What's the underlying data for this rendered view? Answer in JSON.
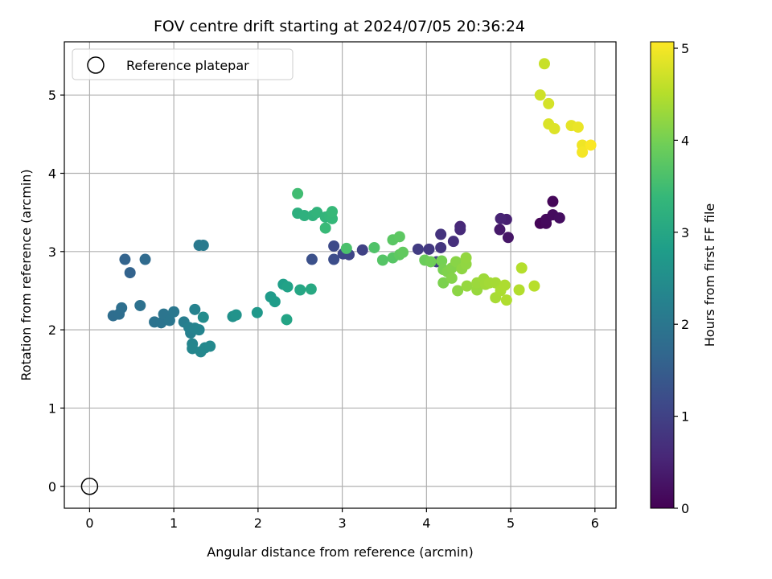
{
  "chart_data": {
    "type": "scatter",
    "title": "FOV centre drift starting at 2024/07/05 20:36:24",
    "xlabel": "Angular distance from reference (arcmin)",
    "ylabel": "Rotation from reference (arcmin)",
    "xlim": [
      -0.3,
      6.25
    ],
    "ylim": [
      -0.28,
      5.68
    ],
    "xticks": [
      0,
      1,
      2,
      3,
      4,
      5,
      6
    ],
    "yticks": [
      0,
      1,
      2,
      3,
      4,
      5
    ],
    "grid": true,
    "legend": {
      "placement": "top-left",
      "entries": [
        "Reference platepar"
      ]
    },
    "reference_point": {
      "label": "Reference platepar",
      "x": 0,
      "y": 0
    },
    "colorbar": {
      "label": "Hours from first FF file",
      "min": 0,
      "max": 5.07,
      "ticks": [
        0,
        1,
        2,
        3,
        4,
        5
      ],
      "colormap": "viridis"
    },
    "colormap_stops": [
      "#440154",
      "#482878",
      "#3e4989",
      "#31688e",
      "#26828e",
      "#1f9e89",
      "#35b779",
      "#6ece58",
      "#b5de2b",
      "#fde725"
    ],
    "points": [
      {
        "x": 5.35,
        "y": 3.36,
        "c": 0.05
      },
      {
        "x": 5.42,
        "y": 3.36,
        "c": 0.1
      },
      {
        "x": 5.42,
        "y": 3.41,
        "c": 0.12
      },
      {
        "x": 5.5,
        "y": 3.47,
        "c": 0.15
      },
      {
        "x": 5.58,
        "y": 3.43,
        "c": 0.18
      },
      {
        "x": 5.5,
        "y": 3.64,
        "c": 0.08
      },
      {
        "x": 4.97,
        "y": 3.18,
        "c": 0.3
      },
      {
        "x": 4.87,
        "y": 3.28,
        "c": 0.35
      },
      {
        "x": 4.95,
        "y": 3.41,
        "c": 0.45
      },
      {
        "x": 4.88,
        "y": 3.42,
        "c": 0.5
      },
      {
        "x": 4.4,
        "y": 3.32,
        "c": 0.55
      },
      {
        "x": 4.4,
        "y": 3.28,
        "c": 0.6
      },
      {
        "x": 4.32,
        "y": 3.13,
        "c": 0.7
      },
      {
        "x": 4.17,
        "y": 3.22,
        "c": 0.75
      },
      {
        "x": 4.17,
        "y": 3.05,
        "c": 0.8
      },
      {
        "x": 4.03,
        "y": 3.03,
        "c": 0.85
      },
      {
        "x": 3.9,
        "y": 3.03,
        "c": 0.9
      },
      {
        "x": 4.12,
        "y": 2.87,
        "c": 0.95
      },
      {
        "x": 3.24,
        "y": 3.02,
        "c": 1.0
      },
      {
        "x": 3.08,
        "y": 2.96,
        "c": 1.05
      },
      {
        "x": 3.01,
        "y": 2.97,
        "c": 1.1
      },
      {
        "x": 2.9,
        "y": 3.07,
        "c": 1.15
      },
      {
        "x": 2.9,
        "y": 2.9,
        "c": 1.2
      },
      {
        "x": 2.64,
        "y": 2.9,
        "c": 1.25
      },
      {
        "x": 0.48,
        "y": 2.73,
        "c": 1.6
      },
      {
        "x": 0.42,
        "y": 2.9,
        "c": 1.62
      },
      {
        "x": 0.66,
        "y": 2.9,
        "c": 1.75
      },
      {
        "x": 0.28,
        "y": 2.18,
        "c": 1.8
      },
      {
        "x": 0.35,
        "y": 2.2,
        "c": 1.82
      },
      {
        "x": 0.38,
        "y": 2.28,
        "c": 1.84
      },
      {
        "x": 0.6,
        "y": 2.31,
        "c": 1.88
      },
      {
        "x": 0.77,
        "y": 2.1,
        "c": 1.92
      },
      {
        "x": 0.85,
        "y": 2.09,
        "c": 1.95
      },
      {
        "x": 0.88,
        "y": 2.2,
        "c": 1.97
      },
      {
        "x": 0.95,
        "y": 2.12,
        "c": 2.0
      },
      {
        "x": 1.0,
        "y": 2.23,
        "c": 2.02
      },
      {
        "x": 1.3,
        "y": 3.08,
        "c": 2.05
      },
      {
        "x": 1.35,
        "y": 3.08,
        "c": 2.07
      },
      {
        "x": 1.12,
        "y": 2.1,
        "c": 2.15
      },
      {
        "x": 1.18,
        "y": 2.03,
        "c": 2.2
      },
      {
        "x": 1.2,
        "y": 1.96,
        "c": 2.22
      },
      {
        "x": 1.25,
        "y": 2.26,
        "c": 2.25
      },
      {
        "x": 1.25,
        "y": 2.02,
        "c": 2.27
      },
      {
        "x": 1.3,
        "y": 2.0,
        "c": 2.3
      },
      {
        "x": 1.22,
        "y": 1.82,
        "c": 2.32
      },
      {
        "x": 1.22,
        "y": 1.76,
        "c": 2.34
      },
      {
        "x": 1.32,
        "y": 1.72,
        "c": 2.36
      },
      {
        "x": 1.37,
        "y": 1.77,
        "c": 2.38
      },
      {
        "x": 1.43,
        "y": 1.79,
        "c": 2.4
      },
      {
        "x": 1.35,
        "y": 2.16,
        "c": 2.45
      },
      {
        "x": 1.7,
        "y": 2.17,
        "c": 2.55
      },
      {
        "x": 1.74,
        "y": 2.19,
        "c": 2.6
      },
      {
        "x": 1.99,
        "y": 2.22,
        "c": 2.7
      },
      {
        "x": 2.15,
        "y": 2.42,
        "c": 2.75
      },
      {
        "x": 2.2,
        "y": 2.36,
        "c": 2.78
      },
      {
        "x": 2.3,
        "y": 2.58,
        "c": 2.85
      },
      {
        "x": 2.35,
        "y": 2.55,
        "c": 2.9
      },
      {
        "x": 2.34,
        "y": 2.13,
        "c": 2.95
      },
      {
        "x": 2.5,
        "y": 2.51,
        "c": 3.0
      },
      {
        "x": 2.63,
        "y": 2.52,
        "c": 3.05
      },
      {
        "x": 2.47,
        "y": 3.49,
        "c": 3.2
      },
      {
        "x": 2.55,
        "y": 3.46,
        "c": 3.22
      },
      {
        "x": 2.65,
        "y": 3.46,
        "c": 3.25
      },
      {
        "x": 2.7,
        "y": 3.5,
        "c": 3.3
      },
      {
        "x": 2.8,
        "y": 3.44,
        "c": 3.32
      },
      {
        "x": 2.85,
        "y": 3.46,
        "c": 3.35
      },
      {
        "x": 2.88,
        "y": 3.42,
        "c": 3.38
      },
      {
        "x": 2.88,
        "y": 3.51,
        "c": 3.4
      },
      {
        "x": 2.8,
        "y": 3.3,
        "c": 3.42
      },
      {
        "x": 2.47,
        "y": 3.74,
        "c": 3.5
      },
      {
        "x": 3.05,
        "y": 3.04,
        "c": 3.6
      },
      {
        "x": 3.38,
        "y": 3.05,
        "c": 3.65
      },
      {
        "x": 3.48,
        "y": 2.89,
        "c": 3.7
      },
      {
        "x": 3.6,
        "y": 2.92,
        "c": 3.72
      },
      {
        "x": 3.6,
        "y": 3.15,
        "c": 3.75
      },
      {
        "x": 3.68,
        "y": 3.19,
        "c": 3.78
      },
      {
        "x": 3.68,
        "y": 2.96,
        "c": 3.8
      },
      {
        "x": 3.72,
        "y": 2.99,
        "c": 3.82
      },
      {
        "x": 3.98,
        "y": 2.89,
        "c": 3.9
      },
      {
        "x": 4.05,
        "y": 2.87,
        "c": 3.95
      },
      {
        "x": 4.18,
        "y": 2.88,
        "c": 4.0
      },
      {
        "x": 4.2,
        "y": 2.77,
        "c": 4.02
      },
      {
        "x": 4.2,
        "y": 2.6,
        "c": 4.05
      },
      {
        "x": 4.25,
        "y": 2.74,
        "c": 4.08
      },
      {
        "x": 4.3,
        "y": 2.79,
        "c": 4.1
      },
      {
        "x": 4.3,
        "y": 2.66,
        "c": 4.12
      },
      {
        "x": 4.35,
        "y": 2.87,
        "c": 4.15
      },
      {
        "x": 4.37,
        "y": 2.5,
        "c": 4.18
      },
      {
        "x": 4.42,
        "y": 2.78,
        "c": 4.2
      },
      {
        "x": 4.47,
        "y": 2.84,
        "c": 4.22
      },
      {
        "x": 4.47,
        "y": 2.92,
        "c": 4.24
      },
      {
        "x": 4.48,
        "y": 2.56,
        "c": 4.26
      },
      {
        "x": 4.6,
        "y": 2.51,
        "c": 4.28
      },
      {
        "x": 4.6,
        "y": 2.6,
        "c": 4.3
      },
      {
        "x": 4.68,
        "y": 2.65,
        "c": 4.32
      },
      {
        "x": 4.7,
        "y": 2.58,
        "c": 4.34
      },
      {
        "x": 4.75,
        "y": 2.6,
        "c": 4.36
      },
      {
        "x": 4.82,
        "y": 2.6,
        "c": 4.38
      },
      {
        "x": 4.82,
        "y": 2.41,
        "c": 4.4
      },
      {
        "x": 4.88,
        "y": 2.5,
        "c": 4.42
      },
      {
        "x": 4.93,
        "y": 2.57,
        "c": 4.44
      },
      {
        "x": 4.95,
        "y": 2.38,
        "c": 4.46
      },
      {
        "x": 5.1,
        "y": 2.51,
        "c": 4.48
      },
      {
        "x": 5.13,
        "y": 2.79,
        "c": 4.5
      },
      {
        "x": 5.28,
        "y": 2.56,
        "c": 4.52
      },
      {
        "x": 5.4,
        "y": 5.4,
        "c": 4.65
      },
      {
        "x": 5.35,
        "y": 5.0,
        "c": 4.7
      },
      {
        "x": 5.45,
        "y": 4.89,
        "c": 4.75
      },
      {
        "x": 5.45,
        "y": 4.63,
        "c": 4.8
      },
      {
        "x": 5.52,
        "y": 4.57,
        "c": 4.82
      },
      {
        "x": 5.72,
        "y": 4.61,
        "c": 4.88
      },
      {
        "x": 5.8,
        "y": 4.59,
        "c": 4.92
      },
      {
        "x": 5.85,
        "y": 4.36,
        "c": 4.96
      },
      {
        "x": 5.85,
        "y": 4.27,
        "c": 5.0
      },
      {
        "x": 5.95,
        "y": 4.36,
        "c": 5.05
      }
    ]
  }
}
